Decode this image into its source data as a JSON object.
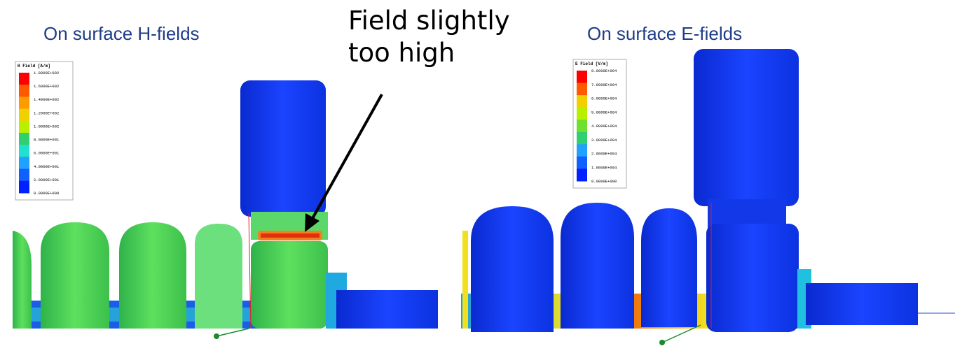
{
  "left_panel": {
    "title": "On surface H-fields",
    "legend": {
      "title": "H Field [A/m]",
      "labels": [
        "1.8000E+002",
        "1.6000E+002",
        "1.4000E+002",
        "1.2000E+002",
        "1.0000E+002",
        "8.0000E+001",
        "6.0000E+001",
        "4.0000E+001",
        "2.0000E+001",
        "0.0000E+000"
      ]
    }
  },
  "annotation": {
    "lines": [
      "Field slightly",
      "too high"
    ]
  },
  "right_panel": {
    "title": "On surface E-fields",
    "legend": {
      "title": "E Field [V/m]",
      "labels": [
        "8.0000E+004",
        "7.0000E+004",
        "6.0000E+004",
        "5.0000E+004",
        "4.0000E+004",
        "3.0000E+004",
        "2.0000E+004",
        "1.0000E+004",
        "0.0000E+000"
      ]
    }
  }
}
